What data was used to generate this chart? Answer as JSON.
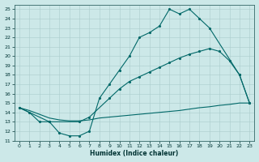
{
  "xlabel": "Humidex (Indice chaleur)",
  "xlim": [
    -0.5,
    23.5
  ],
  "ylim": [
    11,
    25.5
  ],
  "yticks": [
    11,
    12,
    13,
    14,
    15,
    16,
    17,
    18,
    19,
    20,
    21,
    22,
    23,
    24,
    25
  ],
  "xticks": [
    0,
    1,
    2,
    3,
    4,
    5,
    6,
    7,
    8,
    9,
    10,
    11,
    12,
    13,
    14,
    15,
    16,
    17,
    18,
    19,
    20,
    21,
    22,
    23
  ],
  "bg_color": "#cce8e8",
  "grid_color": "#aacccc",
  "line_color": "#006868",
  "curve_top_x": [
    0,
    1,
    2,
    3,
    4,
    5,
    6,
    7,
    8,
    9,
    10,
    11,
    12,
    13,
    14,
    15,
    16,
    17,
    18,
    19,
    22,
    23
  ],
  "curve_top_y": [
    14.5,
    14.0,
    13.0,
    13.0,
    11.8,
    11.5,
    11.5,
    12.0,
    15.5,
    17.0,
    18.5,
    20.0,
    22.0,
    22.5,
    23.2,
    25.0,
    24.5,
    25.0,
    24.0,
    23.0,
    18.0,
    15.0
  ],
  "curve_mid_x": [
    0,
    3,
    6,
    7,
    9,
    10,
    11,
    12,
    13,
    14,
    15,
    16,
    17,
    18,
    19,
    20,
    21,
    22,
    23
  ],
  "curve_mid_y": [
    14.5,
    13.0,
    13.0,
    13.5,
    15.5,
    16.5,
    17.3,
    17.8,
    18.3,
    18.8,
    19.3,
    19.8,
    20.2,
    20.5,
    20.8,
    20.5,
    19.5,
    18.0,
    15.0
  ],
  "curve_low_x": [
    0,
    1,
    2,
    3,
    4,
    5,
    6,
    7,
    8,
    9,
    10,
    11,
    12,
    13,
    14,
    15,
    16,
    17,
    18,
    19,
    20,
    21,
    22,
    23
  ],
  "curve_low_y": [
    14.5,
    14.2,
    13.8,
    13.4,
    13.2,
    13.1,
    13.1,
    13.2,
    13.4,
    13.5,
    13.6,
    13.7,
    13.8,
    13.9,
    14.0,
    14.1,
    14.2,
    14.35,
    14.5,
    14.6,
    14.75,
    14.85,
    15.0,
    15.0
  ]
}
